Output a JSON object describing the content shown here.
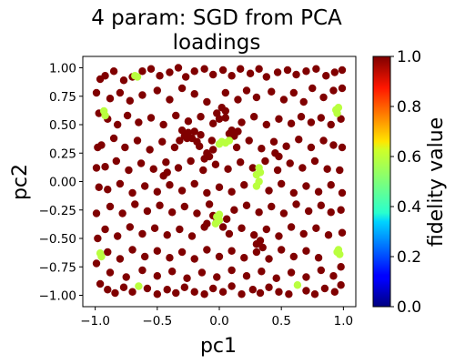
{
  "chart_data": {
    "type": "scatter",
    "title_line1": "4 param:  SGD from PCA",
    "title_line2": "loadings",
    "xlabel": "pc1",
    "ylabel": "pc2",
    "xlim": [
      -1.1,
      1.1
    ],
    "ylim": [
      -1.1,
      1.1
    ],
    "xticks": [
      "−1.0",
      "−0.5",
      "0.0",
      "0.5",
      "1.0"
    ],
    "yticks": [
      "1.00",
      "0.75",
      "0.50",
      "0.25",
      "0.00",
      "−0.25",
      "−0.50",
      "−0.75",
      "−1.00"
    ],
    "colorbar": {
      "label": "fidelity value",
      "colormap": "jet",
      "range": [
        0.0,
        1.0
      ],
      "ticks": [
        "0.0",
        "0.2",
        "0.4",
        "0.6",
        "0.8",
        "1.0"
      ]
    },
    "series": [
      {
        "fidelity": 0.99,
        "color": "#800000",
        "points": [
          [
            -0.96,
            0.9
          ],
          [
            -0.92,
            0.93
          ],
          [
            -0.85,
            0.97
          ],
          [
            -0.77,
            0.89
          ],
          [
            -0.7,
            0.92
          ],
          [
            -0.62,
            0.97
          ],
          [
            -0.55,
            0.99
          ],
          [
            -0.48,
            0.93
          ],
          [
            -0.4,
            0.96
          ],
          [
            -0.33,
            1.0
          ],
          [
            -0.27,
            0.92
          ],
          [
            -0.2,
            0.97
          ],
          [
            -0.12,
            0.99
          ],
          [
            -0.05,
            0.94
          ],
          [
            0.03,
            0.98
          ],
          [
            0.1,
            0.93
          ],
          [
            0.17,
            0.99
          ],
          [
            0.25,
            0.95
          ],
          [
            0.32,
            0.99
          ],
          [
            0.38,
            0.92
          ],
          [
            0.47,
            0.96
          ],
          [
            0.55,
            0.98
          ],
          [
            0.62,
            0.94
          ],
          [
            0.7,
            0.97
          ],
          [
            0.78,
            0.99
          ],
          [
            0.86,
            0.93
          ],
          [
            0.93,
            0.96
          ],
          [
            0.99,
            0.98
          ],
          [
            -0.96,
            -0.9
          ],
          [
            -0.9,
            -0.95
          ],
          [
            -0.84,
            -0.98
          ],
          [
            -0.77,
            -0.93
          ],
          [
            -0.7,
            -0.97
          ],
          [
            -0.58,
            -0.94
          ],
          [
            -0.5,
            -0.99
          ],
          [
            -0.42,
            -0.95
          ],
          [
            -0.35,
            -0.98
          ],
          [
            -0.28,
            -0.93
          ],
          [
            -0.2,
            -0.97
          ],
          [
            -0.12,
            -0.99
          ],
          [
            -0.05,
            -0.94
          ],
          [
            0.03,
            -0.97
          ],
          [
            0.1,
            -0.92
          ],
          [
            0.18,
            -0.99
          ],
          [
            0.27,
            -0.95
          ],
          [
            0.33,
            -0.98
          ],
          [
            0.4,
            -0.93
          ],
          [
            0.48,
            -0.97
          ],
          [
            0.56,
            -0.99
          ],
          [
            0.7,
            -0.96
          ],
          [
            0.77,
            -0.99
          ],
          [
            0.85,
            -0.94
          ],
          [
            0.93,
            -0.97
          ],
          [
            0.98,
            -0.91
          ],
          [
            -0.99,
            0.78
          ],
          [
            -0.97,
            0.6
          ],
          [
            -0.98,
            0.3
          ],
          [
            -0.99,
            0.12
          ],
          [
            -0.97,
            -0.05
          ],
          [
            -0.99,
            -0.28
          ],
          [
            -0.98,
            -0.5
          ],
          [
            -0.99,
            -0.72
          ],
          [
            0.99,
            0.82
          ],
          [
            0.98,
            0.55
          ],
          [
            0.99,
            0.3
          ],
          [
            0.97,
            0.1
          ],
          [
            0.99,
            -0.1
          ],
          [
            0.98,
            -0.25
          ],
          [
            0.99,
            -0.45
          ],
          [
            0.98,
            -0.75
          ],
          [
            -0.88,
            0.73
          ],
          [
            -0.8,
            0.78
          ],
          [
            -0.72,
            0.71
          ],
          [
            -0.62,
            0.76
          ],
          [
            -0.5,
            0.8
          ],
          [
            -0.4,
            0.72
          ],
          [
            -0.3,
            0.82
          ],
          [
            -0.2,
            0.77
          ],
          [
            -0.1,
            0.7
          ],
          [
            0.05,
            0.78
          ],
          [
            0.15,
            0.72
          ],
          [
            0.22,
            0.8
          ],
          [
            0.3,
            0.74
          ],
          [
            0.42,
            0.79
          ],
          [
            0.52,
            0.72
          ],
          [
            0.6,
            0.78
          ],
          [
            0.68,
            0.7
          ],
          [
            0.75,
            0.82
          ],
          [
            0.84,
            0.74
          ],
          [
            0.92,
            0.8
          ],
          [
            -0.9,
            0.55
          ],
          [
            -0.82,
            0.5
          ],
          [
            -0.74,
            0.58
          ],
          [
            -0.65,
            0.52
          ],
          [
            -0.55,
            0.56
          ],
          [
            -0.45,
            0.5
          ],
          [
            -0.35,
            0.58
          ],
          [
            -0.25,
            0.53
          ],
          [
            -0.15,
            0.57
          ],
          [
            -0.05,
            0.51
          ],
          [
            0.05,
            0.56
          ],
          [
            0.18,
            0.52
          ],
          [
            0.28,
            0.57
          ],
          [
            0.38,
            0.5
          ],
          [
            0.48,
            0.55
          ],
          [
            0.58,
            0.51
          ],
          [
            0.66,
            0.57
          ],
          [
            0.74,
            0.52
          ],
          [
            0.82,
            0.56
          ],
          [
            0.9,
            0.5
          ],
          [
            -0.95,
            0.32
          ],
          [
            -0.85,
            0.38
          ],
          [
            -0.76,
            0.3
          ],
          [
            -0.66,
            0.36
          ],
          [
            -0.56,
            0.28
          ],
          [
            -0.46,
            0.35
          ],
          [
            -0.36,
            0.3
          ],
          [
            -0.26,
            0.38
          ],
          [
            -0.16,
            0.31
          ],
          [
            -0.06,
            0.36
          ],
          [
            0.14,
            0.3
          ],
          [
            0.24,
            0.36
          ],
          [
            0.34,
            0.29
          ],
          [
            0.44,
            0.35
          ],
          [
            0.54,
            0.31
          ],
          [
            0.64,
            0.37
          ],
          [
            0.74,
            0.3
          ],
          [
            0.84,
            0.36
          ],
          [
            0.92,
            0.32
          ],
          [
            -0.92,
            0.13
          ],
          [
            -0.83,
            0.18
          ],
          [
            -0.73,
            0.1
          ],
          [
            -0.63,
            0.16
          ],
          [
            -0.53,
            0.11
          ],
          [
            -0.43,
            0.17
          ],
          [
            -0.33,
            0.12
          ],
          [
            -0.23,
            0.18
          ],
          [
            -0.13,
            0.1
          ],
          [
            -0.03,
            0.15
          ],
          [
            0.07,
            0.11
          ],
          [
            0.17,
            0.17
          ],
          [
            0.27,
            0.12
          ],
          [
            0.37,
            0.18
          ],
          [
            0.47,
            0.1
          ],
          [
            0.57,
            0.16
          ],
          [
            0.67,
            0.12
          ],
          [
            0.77,
            0.18
          ],
          [
            0.87,
            0.11
          ],
          [
            -0.9,
            -0.07
          ],
          [
            -0.8,
            -0.02
          ],
          [
            -0.7,
            -0.1
          ],
          [
            -0.6,
            -0.04
          ],
          [
            -0.5,
            -0.09
          ],
          [
            -0.4,
            -0.03
          ],
          [
            -0.3,
            -0.08
          ],
          [
            -0.2,
            -0.02
          ],
          [
            -0.1,
            -0.1
          ],
          [
            0.0,
            -0.05
          ],
          [
            0.1,
            -0.09
          ],
          [
            0.2,
            -0.03
          ],
          [
            0.4,
            -0.08
          ],
          [
            0.5,
            -0.02
          ],
          [
            0.6,
            -0.1
          ],
          [
            0.7,
            -0.04
          ],
          [
            0.8,
            -0.09
          ],
          [
            0.9,
            -0.03
          ],
          [
            -0.88,
            -0.22
          ],
          [
            -0.78,
            -0.28
          ],
          [
            -0.68,
            -0.2
          ],
          [
            -0.58,
            -0.26
          ],
          [
            -0.48,
            -0.21
          ],
          [
            -0.38,
            -0.27
          ],
          [
            -0.28,
            -0.22
          ],
          [
            -0.18,
            -0.28
          ],
          [
            -0.08,
            -0.2
          ],
          [
            0.12,
            -0.25
          ],
          [
            0.22,
            -0.21
          ],
          [
            0.32,
            -0.27
          ],
          [
            0.42,
            -0.22
          ],
          [
            0.52,
            -0.28
          ],
          [
            0.62,
            -0.2
          ],
          [
            0.72,
            -0.26
          ],
          [
            0.82,
            -0.21
          ],
          [
            0.9,
            -0.27
          ],
          [
            -0.92,
            -0.42
          ],
          [
            -0.82,
            -0.48
          ],
          [
            -0.72,
            -0.4
          ],
          [
            -0.62,
            -0.46
          ],
          [
            -0.52,
            -0.41
          ],
          [
            -0.42,
            -0.47
          ],
          [
            -0.32,
            -0.42
          ],
          [
            -0.22,
            -0.48
          ],
          [
            -0.12,
            -0.4
          ],
          [
            0.08,
            -0.46
          ],
          [
            0.18,
            -0.41
          ],
          [
            0.28,
            -0.47
          ],
          [
            0.38,
            -0.42
          ],
          [
            0.48,
            -0.48
          ],
          [
            0.58,
            -0.4
          ],
          [
            0.68,
            -0.46
          ],
          [
            0.78,
            -0.41
          ],
          [
            0.88,
            -0.47
          ],
          [
            -0.9,
            -0.62
          ],
          [
            -0.8,
            -0.68
          ],
          [
            -0.7,
            -0.6
          ],
          [
            -0.6,
            -0.66
          ],
          [
            -0.5,
            -0.61
          ],
          [
            -0.4,
            -0.67
          ],
          [
            -0.3,
            -0.62
          ],
          [
            -0.2,
            -0.68
          ],
          [
            -0.1,
            -0.6
          ],
          [
            0.0,
            -0.66
          ],
          [
            0.1,
            -0.61
          ],
          [
            0.2,
            -0.67
          ],
          [
            0.3,
            -0.62
          ],
          [
            0.4,
            -0.68
          ],
          [
            0.5,
            -0.6
          ],
          [
            0.6,
            -0.66
          ],
          [
            0.7,
            -0.61
          ],
          [
            0.8,
            -0.67
          ],
          [
            -0.88,
            -0.8
          ],
          [
            -0.75,
            -0.84
          ],
          [
            -0.62,
            -0.78
          ],
          [
            -0.5,
            -0.83
          ],
          [
            -0.38,
            -0.79
          ],
          [
            -0.26,
            -0.85
          ],
          [
            -0.14,
            -0.8
          ],
          [
            -0.02,
            -0.84
          ],
          [
            0.1,
            -0.78
          ],
          [
            0.22,
            -0.83
          ],
          [
            0.34,
            -0.79
          ],
          [
            0.46,
            -0.85
          ],
          [
            0.58,
            -0.8
          ],
          [
            0.7,
            -0.84
          ],
          [
            0.82,
            -0.78
          ],
          [
            0.92,
            -0.83
          ],
          [
            -0.3,
            0.45
          ],
          [
            -0.28,
            0.4
          ],
          [
            -0.25,
            0.43
          ],
          [
            -0.22,
            0.38
          ],
          [
            -0.2,
            0.44
          ],
          [
            -0.18,
            0.35
          ],
          [
            -0.15,
            0.41
          ],
          [
            -0.32,
            0.36
          ],
          [
            -0.12,
            0.2
          ],
          [
            -0.1,
            0.25
          ],
          [
            -0.08,
            0.22
          ],
          [
            -0.05,
            0.28
          ],
          [
            -0.02,
            0.6
          ],
          [
            0.02,
            0.65
          ],
          [
            0.05,
            0.62
          ],
          [
            0.0,
            0.55
          ],
          [
            0.1,
            0.45
          ],
          [
            0.12,
            0.4
          ],
          [
            0.15,
            0.44
          ],
          [
            0.08,
            0.42
          ],
          [
            -0.05,
            -0.3
          ],
          [
            -0.02,
            -0.35
          ],
          [
            0.03,
            -0.4
          ],
          [
            0.06,
            -0.33
          ],
          [
            -0.1,
            -0.37
          ],
          [
            0.3,
            -0.55
          ],
          [
            0.33,
            -0.52
          ],
          [
            0.35,
            -0.58
          ],
          [
            -0.45,
            0.05
          ],
          [
            -0.42,
            0.08
          ],
          [
            0.45,
            0.25
          ],
          [
            0.48,
            0.22
          ]
        ]
      },
      {
        "fidelity": 0.65,
        "color": "#b9ff3f",
        "points": [
          [
            -0.68,
            0.93
          ],
          [
            -0.66,
            0.92
          ],
          [
            -0.93,
            0.62
          ],
          [
            -0.92,
            0.58
          ],
          [
            0.94,
            0.63
          ],
          [
            0.96,
            0.65
          ],
          [
            0.95,
            0.6
          ],
          [
            0.0,
            0.33
          ],
          [
            0.02,
            0.35
          ],
          [
            0.05,
            0.34
          ],
          [
            0.08,
            0.36
          ],
          [
            0.32,
            0.12
          ],
          [
            0.3,
            0.06
          ],
          [
            0.32,
            0.0
          ],
          [
            0.3,
            -0.04
          ],
          [
            0.33,
            0.08
          ],
          [
            -0.02,
            -0.31
          ],
          [
            0.0,
            -0.34
          ],
          [
            -0.03,
            -0.37
          ],
          [
            0.0,
            -0.29
          ],
          [
            -0.96,
            -0.63
          ],
          [
            -0.95,
            -0.66
          ],
          [
            -0.65,
            -0.92
          ],
          [
            0.96,
            -0.6
          ],
          [
            0.97,
            -0.64
          ],
          [
            0.95,
            -0.62
          ],
          [
            0.63,
            -0.91
          ]
        ]
      }
    ]
  }
}
